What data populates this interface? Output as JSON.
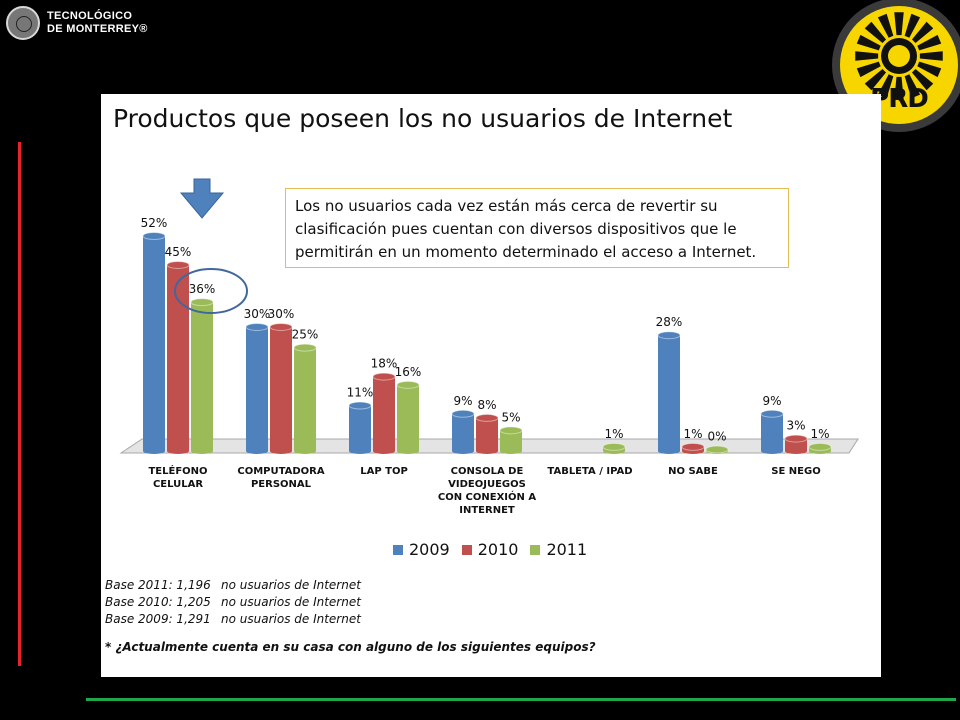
{
  "header": {
    "institution_line1": "TECNOLÓGICO",
    "institution_line2": "DE MONTERREY®",
    "party_logo": "PRD"
  },
  "colors": {
    "s2009": "#4f81bd",
    "s2010": "#c0504d",
    "s2011": "#9bbb59",
    "accent_red": "#e8242b",
    "accent_green": "#1fa74a"
  },
  "callout": "Los no usuarios cada vez están más cerca de revertir su clasificación pues cuentan con diversos dispositivos que le permitirán en un momento determinado el acceso a Internet.",
  "chart_data": {
    "type": "bar",
    "title": "Productos que poseen los no usuarios de Internet",
    "categories": [
      [
        "TELÉFONO",
        "CELULAR"
      ],
      [
        "COMPUTADORA",
        "PERSONAL"
      ],
      [
        "LAP TOP"
      ],
      [
        "CONSOLA DE",
        "VIDEOJUEGOS",
        "CON CONEXIÓN A",
        "INTERNET"
      ],
      [
        "TABLETA / IPAD"
      ],
      [
        "NO SABE"
      ],
      [
        "SE NEGO"
      ]
    ],
    "series": [
      {
        "name": "2009",
        "values": [
          52,
          30,
          11,
          9,
          null,
          28,
          9
        ],
        "labels": [
          "52%",
          "30%",
          "11%",
          "9%",
          "",
          "28%",
          "9%"
        ]
      },
      {
        "name": "2010",
        "values": [
          45,
          30,
          18,
          8,
          null,
          1,
          3
        ],
        "labels": [
          "45%",
          "30%",
          "18%",
          "8%",
          "",
          "1%",
          "3%"
        ]
      },
      {
        "name": "2011",
        "values": [
          36,
          25,
          16,
          5,
          1,
          0,
          1
        ],
        "labels": [
          "36%",
          "25%",
          "16%",
          "5%",
          "1%",
          "0%",
          "1%"
        ]
      }
    ],
    "ylim": [
      0,
      52
    ],
    "legend": "bottom",
    "grid": false
  },
  "bases": [
    {
      "label": "Base 2011: 1,196",
      "desc": "no usuarios de Internet"
    },
    {
      "label": "Base 2010: 1,205",
      "desc": "no usuarios de Internet"
    },
    {
      "label": "Base 2009: 1,291",
      "desc": "no usuarios de Internet"
    }
  ],
  "question": "* ¿Actualmente cuenta en su casa con alguno de los siguientes equipos?"
}
